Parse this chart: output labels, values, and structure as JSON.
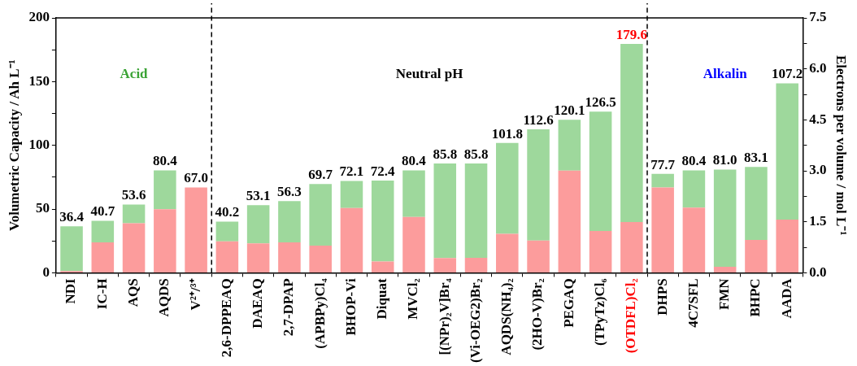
{
  "chart_data": {
    "type": "bar",
    "ylabel": "Volumetric Capacity / Ah L⁻¹",
    "y2label": "Electrons per volume / mol L⁻¹",
    "categories": [
      "NDI",
      "IC-H",
      "AQS",
      "AQDS",
      "V²⁺/³⁺",
      "2,6-DPPEAQ",
      "DAEAQ",
      "2,7-DPAP",
      "(APBPy)Cl₄",
      "BHOP-Vi",
      "Diquat",
      "MVCl₂",
      "[(NPr)₂V]Br₄",
      "(Vi-OEG2)Br₂",
      "AQDS(NH₄)₂",
      "(2HO-V)Br₂",
      "PEGAQ",
      "(TPyTz)Cl₆",
      "(OTDFL)Cl₂",
      "DHPS",
      "4C7SFL",
      "FMN",
      "BHPC",
      "AADA"
    ],
    "series": [
      {
        "color": "#fc9c9c",
        "values": [
          1.4,
          23.9,
          38.9,
          49.9,
          67.0,
          24.6,
          23.0,
          23.9,
          21.3,
          50.9,
          8.9,
          43.8,
          11.5,
          11.8,
          30.5,
          25.3,
          80.1,
          32.8,
          39.8,
          67.0,
          51.1,
          4.7,
          25.8,
          41.7
        ]
      },
      {
        "color": "#9ed89c",
        "values": [
          35.0,
          16.8,
          14.7,
          30.5,
          0,
          15.6,
          30.1,
          32.4,
          48.4,
          21.2,
          63.5,
          36.6,
          74.3,
          74.0,
          71.3,
          87.3,
          40.0,
          93.7,
          139.8,
          10.7,
          29.3,
          76.3,
          57.3,
          107.0
        ]
      }
    ],
    "stacked": true,
    "totals": [
      "36.4",
      "40.7",
      "53.6",
      "80.4",
      "67.0",
      "40.2",
      "53.1",
      "56.3",
      "69.7",
      "72.1",
      "72.4",
      "80.4",
      "85.8",
      "85.8",
      "101.8",
      "112.6",
      "120.1",
      "126.5",
      "179.6",
      "77.7",
      "80.4",
      "81.0",
      "83.1",
      null
    ],
    "ylim": [
      0,
      200
    ],
    "yticks": [
      0,
      {
        "value": 25,
        "label": null
      },
      50,
      {
        "value": 75,
        "label": null
      },
      100,
      {
        "value": 125,
        "label": null
      },
      150,
      {
        "value": 175,
        "label": null
      },
      200
    ],
    "y2lim": [
      0,
      7.5
    ],
    "y2ticks": [
      {
        "value": 0,
        "label": "0.0"
      },
      {
        "value": 0.75,
        "label": null
      },
      1.5,
      {
        "value": 2.25,
        "label": null
      },
      {
        "value": 3,
        "label": "3.0"
      },
      {
        "value": 3.75,
        "label": null
      },
      4.5,
      {
        "value": 5.25,
        "label": null
      },
      {
        "value": 6,
        "label": "6.0"
      },
      {
        "value": 6.75,
        "label": null
      },
      7.5
    ],
    "annotations": [
      "Acid",
      "Neutral pH",
      "Alkalin",
      {
        "text": "107.2",
        "x": "AADA",
        "y": 148.7
      }
    ],
    "grid": false,
    "legend": false
  }
}
